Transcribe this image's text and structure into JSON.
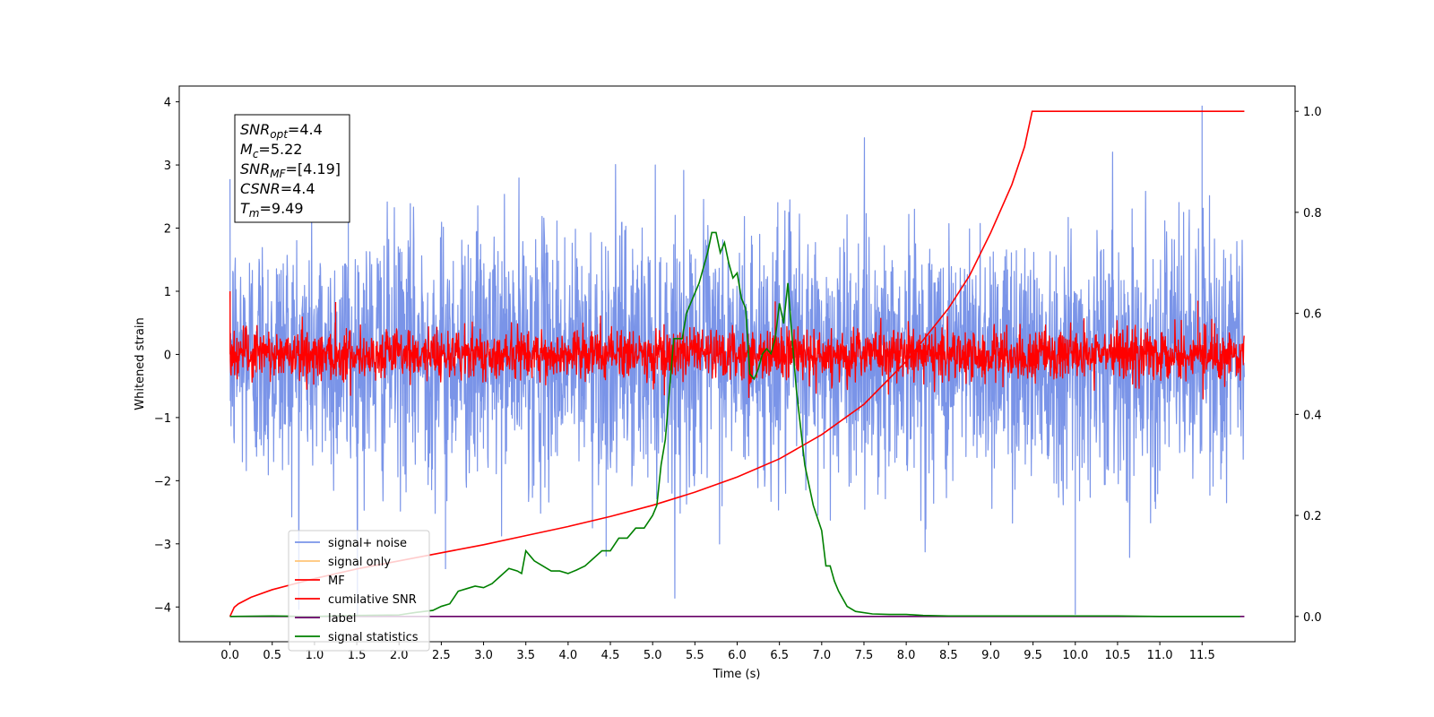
{
  "chart_data": {
    "type": "line",
    "xlabel": "Time (s)",
    "ylabel": "Whitened strain",
    "xlim": [
      -0.6,
      12.6
    ],
    "ylim": [
      -4.55,
      4.25
    ],
    "y2lim": [
      -0.05,
      1.05
    ],
    "x_ticks": [
      "0.0",
      "0.5",
      "1.0",
      "1.5",
      "2.0",
      "2.5",
      "3.0",
      "3.5",
      "4.0",
      "4.5",
      "5.0",
      "5.5",
      "6.0",
      "6.5",
      "7.0",
      "7.5",
      "8.0",
      "8.5",
      "9.0",
      "9.5",
      "10.0",
      "10.5",
      "11.0",
      "11.5"
    ],
    "y_ticks": [
      "4",
      "3",
      "2",
      "1",
      "0",
      "−1",
      "−2",
      "−3",
      "−4"
    ],
    "y2_ticks": [
      "1.0",
      "0.8",
      "0.6",
      "0.4",
      "0.2",
      "0.0"
    ],
    "annotation": {
      "lines": [
        {
          "sym": "SNR",
          "sub": "opt",
          "rest": "=4.4"
        },
        {
          "sym": "M",
          "sub": "c",
          "rest": "=5.22"
        },
        {
          "sym": "SNR",
          "sub": "MF",
          "rest": "=[4.19]"
        },
        {
          "sym": "CSNR",
          "sub": "",
          "rest": "=4.4"
        },
        {
          "sym": "T",
          "sub": "m",
          "rest": "=9.49"
        }
      ]
    },
    "legend": {
      "position": "lower-left",
      "entries": [
        {
          "label": "signal+ noise",
          "color": "#7a94e8"
        },
        {
          "label": "signal only",
          "color": "#ffc477"
        },
        {
          "label": "MF",
          "color": "#ff0000"
        },
        {
          "label": "cumilative SNR",
          "color": "#ff0000"
        },
        {
          "label": "label",
          "color": "#660066"
        },
        {
          "label": "signal statistics",
          "color": "#008000"
        }
      ]
    },
    "series": [
      {
        "name": "signal+ noise",
        "axis": "left",
        "kind": "noise",
        "color": "#7a94e8",
        "x_range": [
          0,
          12.0
        ],
        "max": 3.94,
        "min": -4.12,
        "approx_upper_envelope": 2.6,
        "approx_lower_envelope": -2.6
      },
      {
        "name": "MF",
        "axis": "left",
        "kind": "noise",
        "color": "#ff0000",
        "x_range": [
          0,
          12.0
        ],
        "start_value": 1.0,
        "approx_upper_envelope": 0.5,
        "approx_lower_envelope": -0.4
      },
      {
        "name": "cumilative SNR",
        "axis": "right",
        "color": "#ff0000",
        "x": [
          0,
          0.05,
          0.1,
          0.25,
          0.5,
          0.75,
          1.0,
          1.5,
          2.0,
          2.5,
          3.0,
          3.5,
          4.0,
          4.5,
          5.0,
          5.5,
          6.0,
          6.5,
          7.0,
          7.5,
          8.0,
          8.5,
          8.75,
          9.0,
          9.25,
          9.4,
          9.49,
          10.0,
          11.0,
          12.0
        ],
        "values": [
          0.0,
          0.018,
          0.025,
          0.038,
          0.053,
          0.064,
          0.075,
          0.094,
          0.11,
          0.126,
          0.142,
          0.16,
          0.178,
          0.198,
          0.22,
          0.246,
          0.276,
          0.312,
          0.36,
          0.42,
          0.505,
          0.61,
          0.675,
          0.76,
          0.855,
          0.93,
          1.0,
          1.0,
          1.0,
          1.0
        ]
      },
      {
        "name": "label",
        "axis": "right",
        "color": "#660066",
        "x": [
          0,
          12.0
        ],
        "values": [
          0.0,
          0.0
        ]
      },
      {
        "name": "signal statistics",
        "axis": "right",
        "color": "#008000",
        "x": [
          0.0,
          0.5,
          1.0,
          1.5,
          2.0,
          2.2,
          2.4,
          2.5,
          2.6,
          2.7,
          2.8,
          2.9,
          3.0,
          3.1,
          3.2,
          3.3,
          3.4,
          3.45,
          3.5,
          3.55,
          3.6,
          3.7,
          3.8,
          3.9,
          4.0,
          4.1,
          4.2,
          4.3,
          4.4,
          4.5,
          4.6,
          4.7,
          4.8,
          4.9,
          5.0,
          5.05,
          5.1,
          5.15,
          5.2,
          5.25,
          5.3,
          5.35,
          5.4,
          5.45,
          5.5,
          5.55,
          5.6,
          5.65,
          5.7,
          5.75,
          5.8,
          5.85,
          5.9,
          5.95,
          6.0,
          6.05,
          6.1,
          6.15,
          6.2,
          6.25,
          6.3,
          6.35,
          6.4,
          6.45,
          6.5,
          6.55,
          6.6,
          6.65,
          6.7,
          6.8,
          6.9,
          7.0,
          7.05,
          7.1,
          7.15,
          7.2,
          7.3,
          7.4,
          7.6,
          7.8,
          8.0,
          8.2,
          8.5,
          9.0,
          9.5,
          10.0,
          10.5,
          11.0,
          11.5,
          11.95
        ],
        "values": [
          0.0,
          0.001,
          0.0,
          0.002,
          0.003,
          0.008,
          0.012,
          0.02,
          0.025,
          0.05,
          0.055,
          0.06,
          0.057,
          0.065,
          0.08,
          0.095,
          0.09,
          0.085,
          0.13,
          0.12,
          0.11,
          0.1,
          0.09,
          0.09,
          0.085,
          0.092,
          0.1,
          0.115,
          0.13,
          0.13,
          0.155,
          0.155,
          0.175,
          0.175,
          0.2,
          0.22,
          0.3,
          0.35,
          0.45,
          0.55,
          0.55,
          0.55,
          0.6,
          0.62,
          0.64,
          0.66,
          0.69,
          0.72,
          0.76,
          0.76,
          0.72,
          0.74,
          0.7,
          0.67,
          0.68,
          0.63,
          0.61,
          0.48,
          0.47,
          0.49,
          0.52,
          0.53,
          0.52,
          0.55,
          0.62,
          0.58,
          0.66,
          0.55,
          0.45,
          0.3,
          0.22,
          0.17,
          0.1,
          0.1,
          0.07,
          0.05,
          0.02,
          0.01,
          0.005,
          0.004,
          0.004,
          0.002,
          0.001,
          0.001,
          0.001,
          0.001,
          0.001,
          0.0,
          0.0,
          0.0
        ]
      }
    ]
  }
}
